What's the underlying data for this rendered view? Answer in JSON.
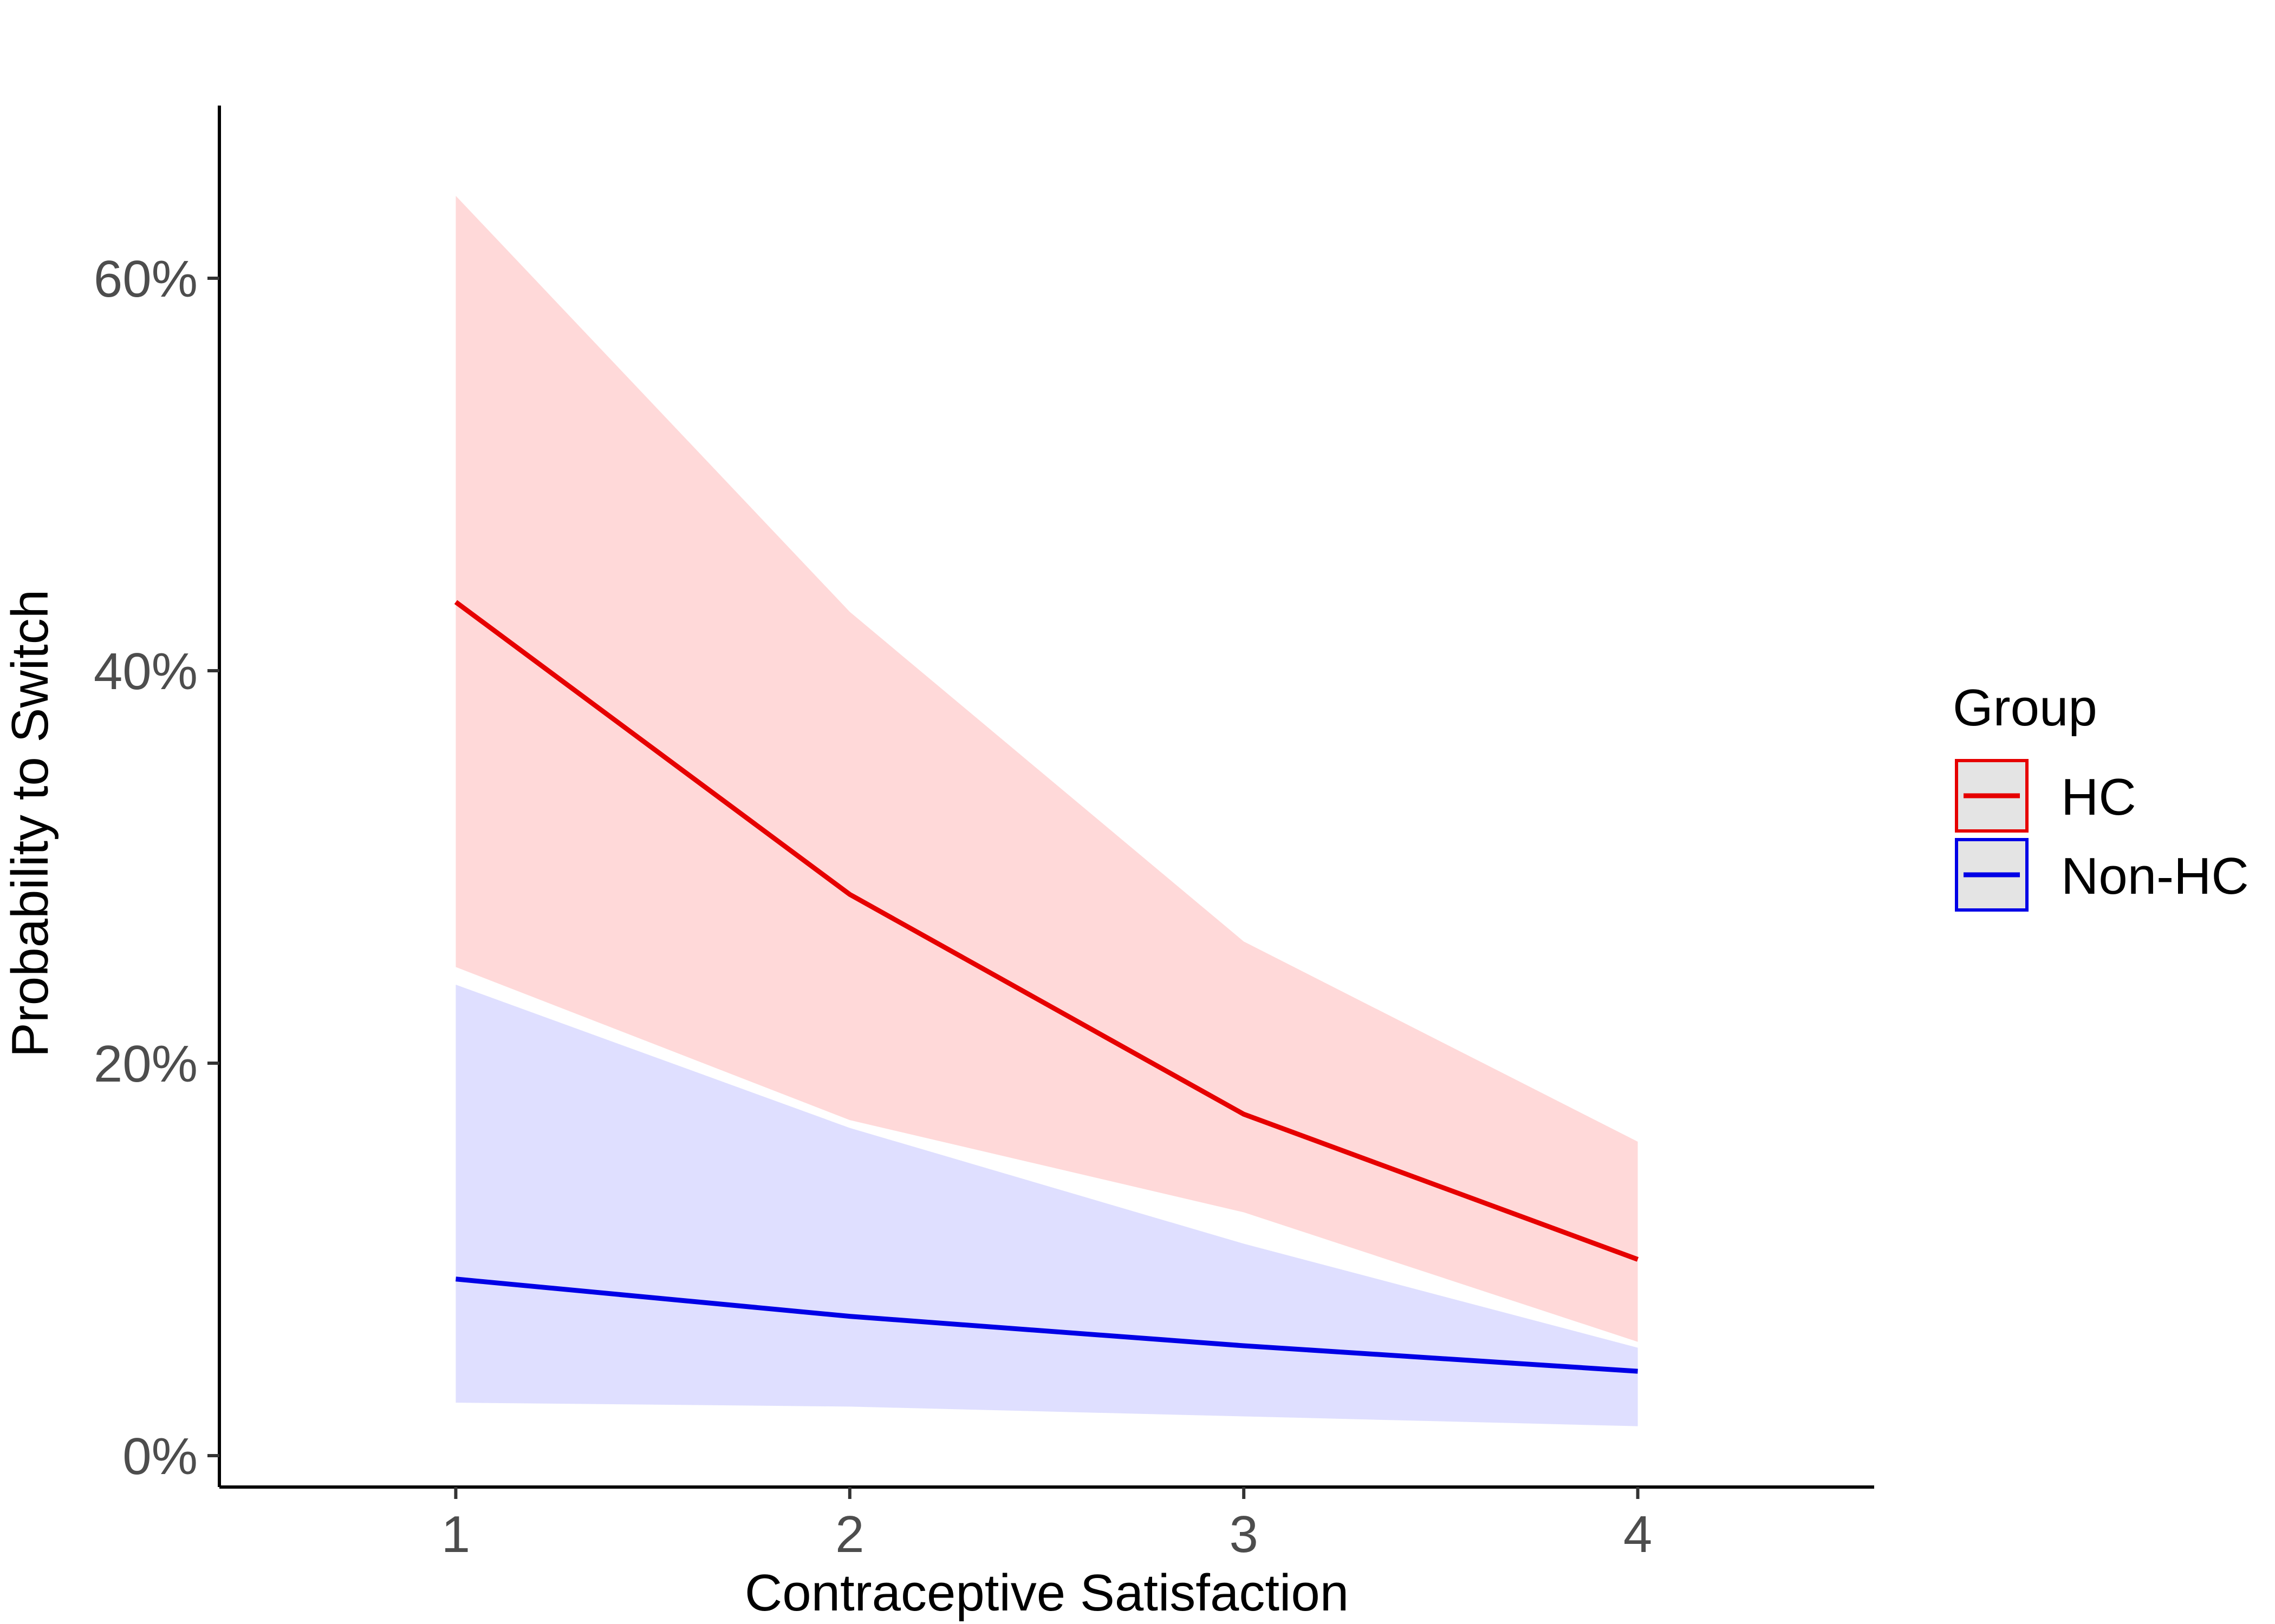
{
  "chart_data": {
    "type": "line",
    "title": "",
    "xlabel": "Contraceptive Satisfaction",
    "ylabel": "Probability to Switch",
    "x": [
      1,
      2,
      3,
      4
    ],
    "xlim": [
      0.4,
      4.6
    ],
    "ylim": [
      -0.016,
      0.688
    ],
    "x_ticks": [
      1,
      2,
      3,
      4
    ],
    "x_tick_labels": [
      "1",
      "2",
      "3",
      "4"
    ],
    "y_ticks": [
      0,
      0.2,
      0.4,
      0.6
    ],
    "y_tick_labels": [
      "0%",
      "20%",
      "40%",
      "60%"
    ],
    "grid": false,
    "legend_position": "right",
    "legend_title": "Group",
    "series": [
      {
        "name": "HC",
        "color": "#e60000",
        "band_color": "#ffd9d9",
        "values": [
          0.435,
          0.286,
          0.174,
          0.1
        ],
        "lower": [
          0.249,
          0.171,
          0.124,
          0.058
        ],
        "upper": [
          0.642,
          0.43,
          0.262,
          0.16
        ]
      },
      {
        "name": "Non-HC",
        "color": "#0000e6",
        "band_color": "#d9d9ff",
        "values": [
          0.09,
          0.071,
          0.056,
          0.043
        ],
        "lower": [
          0.027,
          0.025,
          0.02,
          0.015
        ],
        "upper": [
          0.24,
          0.167,
          0.108,
          0.055
        ]
      }
    ]
  }
}
